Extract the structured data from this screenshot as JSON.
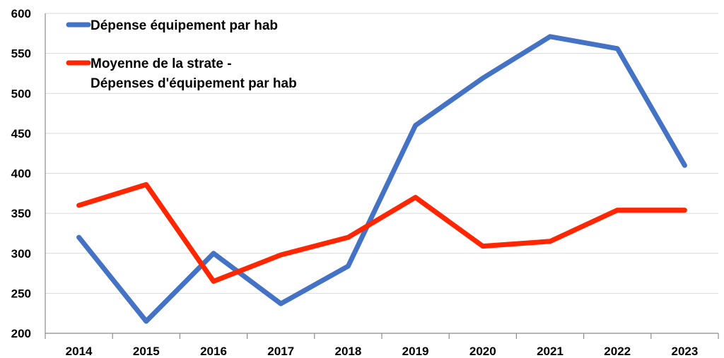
{
  "chart_data": {
    "type": "line",
    "title": "",
    "xlabel": "",
    "ylabel": "",
    "categories": [
      "2014",
      "2015",
      "2016",
      "2017",
      "2018",
      "2019",
      "2020",
      "2021",
      "2022",
      "2023"
    ],
    "ylim": [
      200,
      600
    ],
    "yticks": [
      200,
      250,
      300,
      350,
      400,
      450,
      500,
      550,
      600
    ],
    "grid": true,
    "legend_position": "top-left",
    "series": [
      {
        "name": "Dépense équipement par hab",
        "color": "#4472c4",
        "values": [
          320,
          215,
          300,
          237,
          284,
          460,
          519,
          571,
          556,
          410
        ]
      },
      {
        "name": "Moyenne de la strate - Dépenses d'équipement par hab",
        "name_lines": [
          "Moyenne de la strate -",
          "Dépenses d'équipement par hab"
        ],
        "color": "#ff2600",
        "values": [
          360,
          386,
          265,
          298,
          320,
          370,
          309,
          315,
          354,
          354
        ]
      }
    ]
  }
}
